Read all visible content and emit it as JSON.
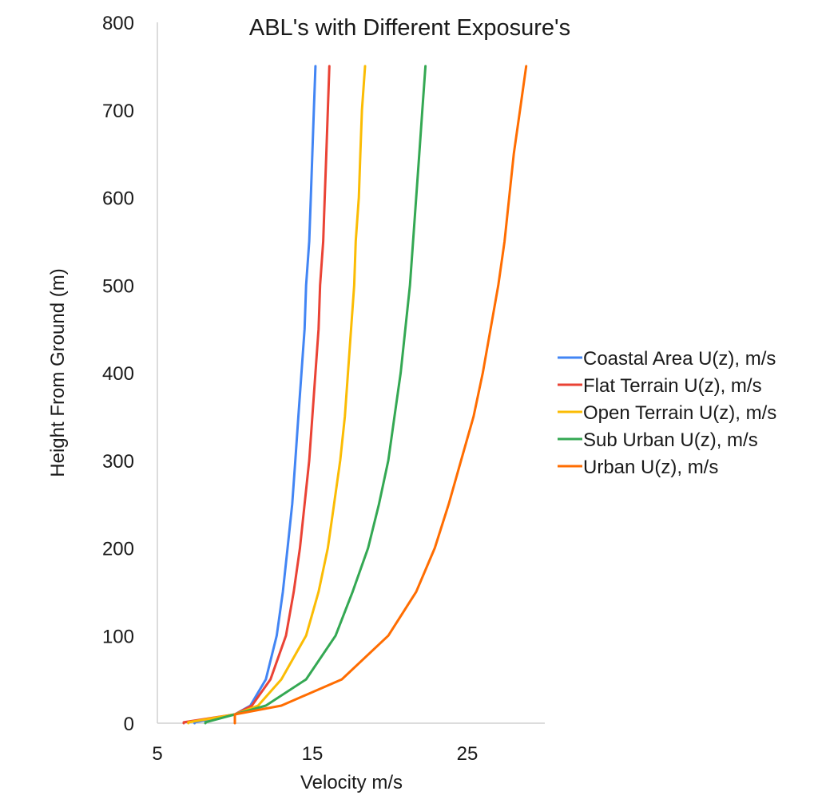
{
  "chart_data": {
    "type": "line",
    "title": "ABL's with Different Exposure's",
    "xlabel": "Velocity m/s",
    "ylabel": "Height From Ground (m)",
    "xlim": [
      5,
      30
    ],
    "ylim": [
      0,
      800
    ],
    "x_ticks": [
      5,
      15,
      25
    ],
    "y_ticks": [
      0,
      100,
      200,
      300,
      400,
      500,
      600,
      700,
      800
    ],
    "grid": false,
    "legend_position": "right",
    "y": [
      1,
      10,
      20,
      50,
      100,
      150,
      200,
      250,
      300,
      350,
      400,
      450,
      500,
      550,
      600,
      650,
      700,
      750
    ],
    "series": [
      {
        "name": "Coastal Area U(z), m/s",
        "color": "#4285F4",
        "x": [
          7.4,
          10.0,
          11.0,
          12.0,
          12.7,
          13.1,
          13.4,
          13.7,
          13.9,
          14.1,
          14.3,
          14.5,
          14.6,
          14.8,
          14.9,
          15.0,
          15.1,
          15.2
        ]
      },
      {
        "name": "Flat Terrain U(z), m/s",
        "color": "#EA4335",
        "x": [
          6.7,
          10.0,
          11.1,
          12.3,
          13.3,
          13.8,
          14.2,
          14.5,
          14.8,
          15.0,
          15.2,
          15.4,
          15.5,
          15.7,
          15.8,
          15.9,
          16.0,
          16.1
        ]
      },
      {
        "name": "Open Terrain U(z), m/s",
        "color": "#FBBC04",
        "x": [
          7.0,
          10.0,
          11.5,
          13.0,
          14.6,
          15.4,
          16.0,
          16.4,
          16.8,
          17.1,
          17.3,
          17.5,
          17.7,
          17.8,
          18.0,
          18.1,
          18.2,
          18.4
        ]
      },
      {
        "name": "Sub Urban U(z), m/s",
        "color": "#34A853",
        "x": [
          8.1,
          10.0,
          12.0,
          14.6,
          16.5,
          17.6,
          18.6,
          19.3,
          19.9,
          20.3,
          20.7,
          21.0,
          21.3,
          21.5,
          21.7,
          21.9,
          22.1,
          22.3
        ]
      },
      {
        "name": "Urban U(z), m/s",
        "color": "#FF6D01",
        "x": [
          10.0,
          10.0,
          13.0,
          16.9,
          19.9,
          21.7,
          22.9,
          23.8,
          24.6,
          25.4,
          26.0,
          26.5,
          27.0,
          27.4,
          27.7,
          28.0,
          28.4,
          28.8
        ]
      }
    ]
  }
}
